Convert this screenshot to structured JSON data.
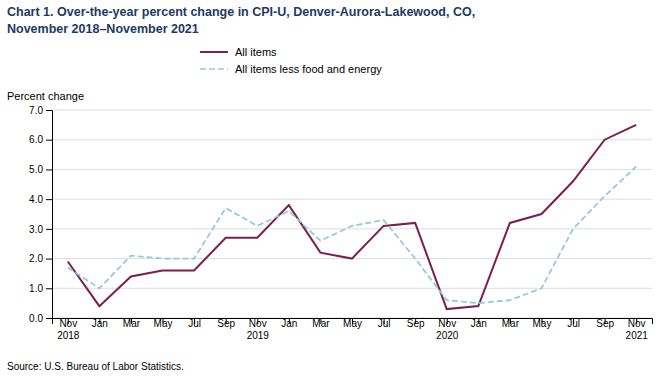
{
  "chart_data": {
    "type": "line",
    "title": "Chart 1. Over-the-year percent change in CPI-U, Denver-Aurora-Lakewood, CO,",
    "subtitle": "November 2018–November 2021",
    "y_label": "Percent change",
    "annotations": [
      "Source: U.S. Bureau of Labor Statistics."
    ],
    "categories": [
      "Nov\n2018",
      "Jan",
      "Mar",
      "May",
      "Jul",
      "Sep",
      "Nov\n2019",
      "Jan",
      "Mar",
      "May",
      "Jul",
      "Sep",
      "Nov\n2020",
      "Jan",
      "Mar",
      "May",
      "Jul",
      "Sep",
      "Nov\n2021"
    ],
    "series": [
      {
        "name": "All items",
        "color": "#7B1F4B",
        "line_style": "solid",
        "values": [
          1.9,
          0.4,
          1.4,
          1.6,
          1.6,
          2.7,
          2.7,
          3.8,
          2.2,
          2.0,
          3.1,
          3.2,
          0.3,
          0.4,
          3.2,
          3.5,
          4.6,
          6.0,
          6.5
        ]
      },
      {
        "name": "All items less food and energy",
        "color": "#93C6E0",
        "line_style": "dashed",
        "values": [
          1.7,
          1.0,
          2.1,
          2.0,
          2.0,
          3.7,
          3.1,
          3.6,
          2.6,
          3.1,
          3.3,
          2.0,
          0.6,
          0.5,
          0.6,
          1.0,
          3.0,
          4.1,
          5.1
        ]
      }
    ],
    "ylim": [
      0.0,
      7.0
    ],
    "yticks": [
      {
        "value": 0.0,
        "label": "0.0"
      },
      {
        "value": 1.0,
        "label": "1.0"
      },
      {
        "value": 2.0,
        "label": "2.0"
      },
      {
        "value": 3.0,
        "label": "3.0"
      },
      {
        "value": 4.0,
        "label": "4.0"
      },
      {
        "value": 5.0,
        "label": "5.0"
      },
      {
        "value": 6.0,
        "label": "6.0"
      },
      {
        "value": 7.0,
        "label": "7.0"
      }
    ],
    "grid": true,
    "legend": "top"
  }
}
